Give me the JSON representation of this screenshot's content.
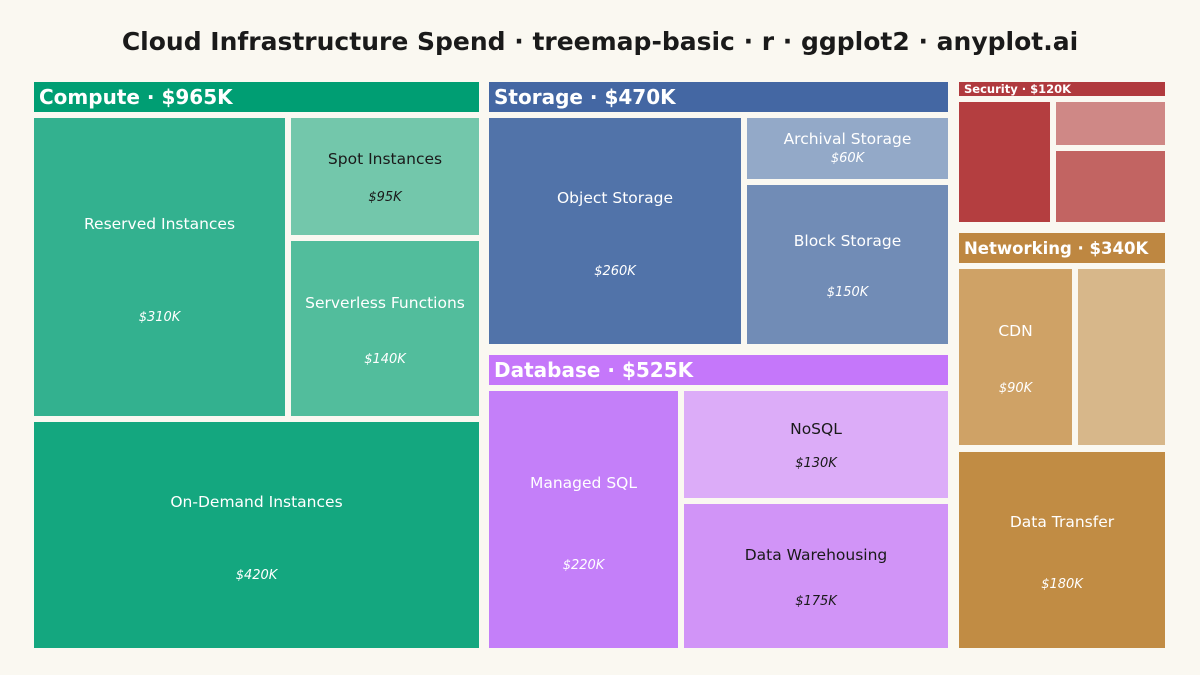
{
  "title": "Cloud Infrastructure Spend · treemap-basic · r · ggplot2 · anyplot.ai",
  "chart_data": {
    "type": "treemap",
    "title": "Cloud Infrastructure Spend · treemap-basic · r · ggplot2 · anyplot.ai",
    "unit": "$K",
    "groups": [
      {
        "name": "Compute",
        "header": "Compute · $965K",
        "total": 965,
        "color": "#009E73",
        "children": [
          {
            "name": "Reserved Instances",
            "value": 310,
            "value_label": "$310K",
            "color": "#33B18F",
            "text_color": "#ffffff"
          },
          {
            "name": "Spot Instances",
            "value": 95,
            "value_label": "$95K",
            "color": "#73C7AB",
            "text_color": "#1a1a1a"
          },
          {
            "name": "Serverless Functions",
            "value": 140,
            "value_label": "$140K",
            "color": "#52BD9C",
            "text_color": "#ffffff"
          },
          {
            "name": "On-Demand Instances",
            "value": 420,
            "value_label": "$420K",
            "color": "#14A77F",
            "text_color": "#ffffff"
          }
        ]
      },
      {
        "name": "Storage",
        "header": "Storage · $470K",
        "total": 470,
        "color": "#4467A3",
        "children": [
          {
            "name": "Object Storage",
            "value": 260,
            "value_label": "$260K",
            "color": "#5173A9",
            "text_color": "#ffffff"
          },
          {
            "name": "Archival Storage",
            "value": 60,
            "value_label": "$60K",
            "color": "#93A9C8",
            "text_color": "#ffffff"
          },
          {
            "name": "Block Storage",
            "value": 150,
            "value_label": "$150K",
            "color": "#718CB6",
            "text_color": "#ffffff"
          }
        ]
      },
      {
        "name": "Database",
        "header": "Database · $525K",
        "total": 525,
        "color": "#C577FA",
        "children": [
          {
            "name": "Managed SQL",
            "value": 220,
            "value_label": "$220K",
            "color": "#C47FF9",
            "text_color": "#ffffff"
          },
          {
            "name": "NoSQL",
            "value": 130,
            "value_label": "$130K",
            "color": "#DCACF8",
            "text_color": "#1a1a1a"
          },
          {
            "name": "Data Warehousing",
            "value": 175,
            "value_label": "$175K",
            "color": "#D194F7",
            "text_color": "#1a1a1a"
          }
        ]
      },
      {
        "name": "Security",
        "header": "Security · $120K",
        "total": 120,
        "color": "#B03A3E",
        "children": [
          {
            "name": "",
            "value": 0,
            "value_label": "",
            "color": "#B43E40",
            "text_color": "#ffffff"
          },
          {
            "name": "",
            "value": 0,
            "value_label": "",
            "color": "#CF8886",
            "text_color": "#ffffff"
          },
          {
            "name": "",
            "value": 0,
            "value_label": "",
            "color": "#C26462",
            "text_color": "#ffffff"
          }
        ]
      },
      {
        "name": "Networking",
        "header": "Networking · $340K",
        "total": 340,
        "color": "#BE8741",
        "children": [
          {
            "name": "CDN",
            "value": 90,
            "value_label": "$90K",
            "color": "#CFA266",
            "text_color": "#ffffff"
          },
          {
            "name": "",
            "value": 0,
            "value_label": "",
            "color": "#D7B78A",
            "text_color": "#ffffff"
          },
          {
            "name": "Data Transfer",
            "value": 180,
            "value_label": "$180K",
            "color": "#C18C44",
            "text_color": "#ffffff"
          }
        ]
      }
    ]
  }
}
